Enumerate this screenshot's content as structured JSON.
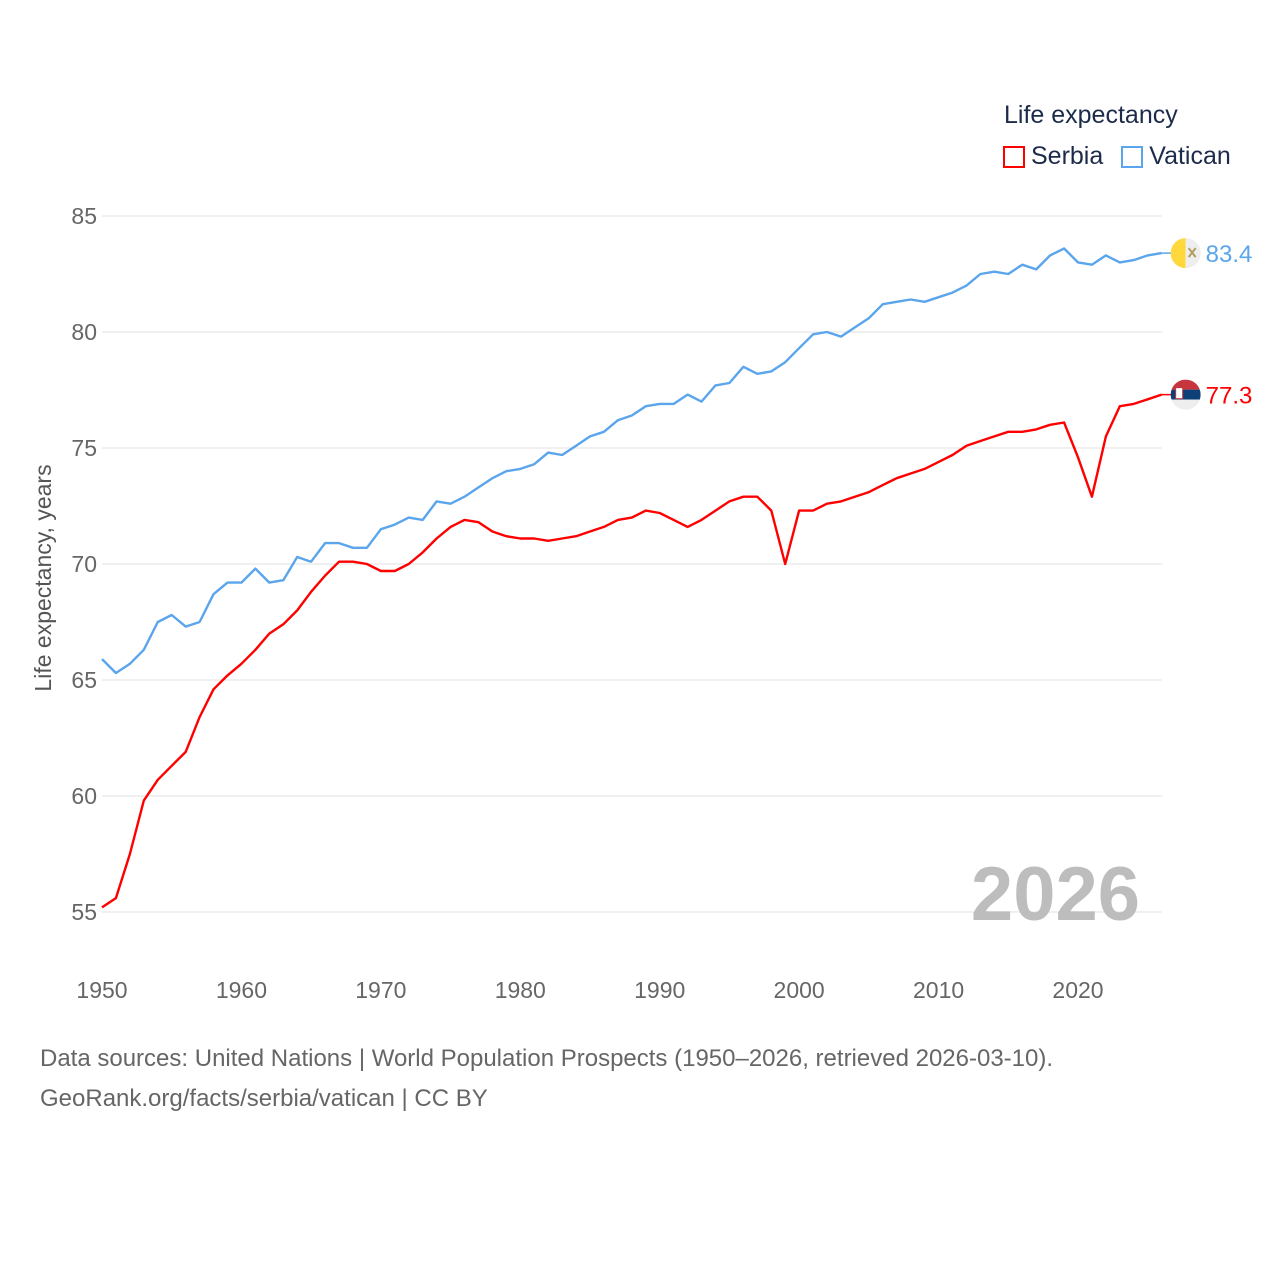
{
  "chart_data": {
    "type": "line",
    "title": "Life expectancy",
    "xlabel": "",
    "ylabel": "Life expectancy, years",
    "xlim": [
      1950,
      2026
    ],
    "ylim": [
      55,
      85
    ],
    "y_ticks": [
      55,
      60,
      65,
      70,
      75,
      80,
      85
    ],
    "x_ticks": [
      1950,
      1960,
      1970,
      1980,
      1990,
      2000,
      2010,
      2020
    ],
    "grid": true,
    "legend_placement": "top-right",
    "watermark_year": "2026",
    "x": [
      1950,
      1951,
      1952,
      1953,
      1954,
      1955,
      1956,
      1957,
      1958,
      1959,
      1960,
      1961,
      1962,
      1963,
      1964,
      1965,
      1966,
      1967,
      1968,
      1969,
      1970,
      1971,
      1972,
      1973,
      1974,
      1975,
      1976,
      1977,
      1978,
      1979,
      1980,
      1981,
      1982,
      1983,
      1984,
      1985,
      1986,
      1987,
      1988,
      1989,
      1990,
      1991,
      1992,
      1993,
      1994,
      1995,
      1996,
      1997,
      1998,
      1999,
      2000,
      2001,
      2002,
      2003,
      2004,
      2005,
      2006,
      2007,
      2008,
      2009,
      2010,
      2011,
      2012,
      2013,
      2014,
      2015,
      2016,
      2017,
      2018,
      2019,
      2020,
      2021,
      2022,
      2023,
      2024,
      2025,
      2026
    ],
    "series": [
      {
        "name": "Serbia",
        "color": "#ff0000",
        "end_label": "77.3",
        "flag": "serbia-flag",
        "values": [
          55.2,
          55.6,
          57.5,
          59.8,
          60.7,
          61.3,
          61.9,
          63.4,
          64.6,
          65.2,
          65.7,
          66.3,
          67.0,
          67.4,
          68.0,
          68.8,
          69.5,
          70.1,
          70.1,
          70.0,
          69.7,
          69.7,
          70.0,
          70.5,
          71.1,
          71.6,
          71.9,
          71.8,
          71.4,
          71.2,
          71.1,
          71.1,
          71.0,
          71.1,
          71.2,
          71.4,
          71.6,
          71.9,
          72.0,
          72.3,
          72.2,
          71.9,
          71.6,
          71.9,
          72.3,
          72.7,
          72.9,
          72.9,
          72.3,
          70.0,
          72.3,
          72.3,
          72.6,
          72.7,
          72.9,
          73.1,
          73.4,
          73.7,
          73.9,
          74.1,
          74.4,
          74.7,
          75.1,
          75.3,
          75.5,
          75.7,
          75.7,
          75.8,
          76.0,
          76.1,
          74.6,
          72.9,
          75.5,
          76.8,
          76.9,
          77.1,
          77.3
        ]
      },
      {
        "name": "Vatican",
        "color": "#5aa5ec",
        "end_label": "83.4",
        "flag": "vatican-flag",
        "values": [
          65.9,
          65.3,
          65.7,
          66.3,
          67.5,
          67.8,
          67.3,
          67.5,
          68.7,
          69.2,
          69.2,
          69.8,
          69.2,
          69.3,
          70.3,
          70.1,
          70.9,
          70.9,
          70.7,
          70.7,
          71.5,
          71.7,
          72.0,
          71.9,
          72.7,
          72.6,
          72.9,
          73.3,
          73.7,
          74.0,
          74.1,
          74.3,
          74.8,
          74.7,
          75.1,
          75.5,
          75.7,
          76.2,
          76.4,
          76.8,
          76.9,
          76.9,
          77.3,
          77.0,
          77.7,
          77.8,
          78.5,
          78.2,
          78.3,
          78.7,
          79.3,
          79.9,
          80.0,
          79.8,
          80.2,
          80.6,
          81.2,
          81.3,
          81.4,
          81.3,
          81.5,
          81.7,
          82.0,
          82.5,
          82.6,
          82.5,
          82.9,
          82.7,
          83.3,
          83.6,
          83.0,
          82.9,
          83.3,
          83.0,
          83.1,
          83.3,
          83.4
        ]
      }
    ]
  },
  "footer": {
    "line1": "Data sources: United Nations | World Population Prospects (1950–2026, retrieved 2026-03-10).",
    "line2": "GeoRank.org/facts/serbia/vatican | CC BY"
  }
}
